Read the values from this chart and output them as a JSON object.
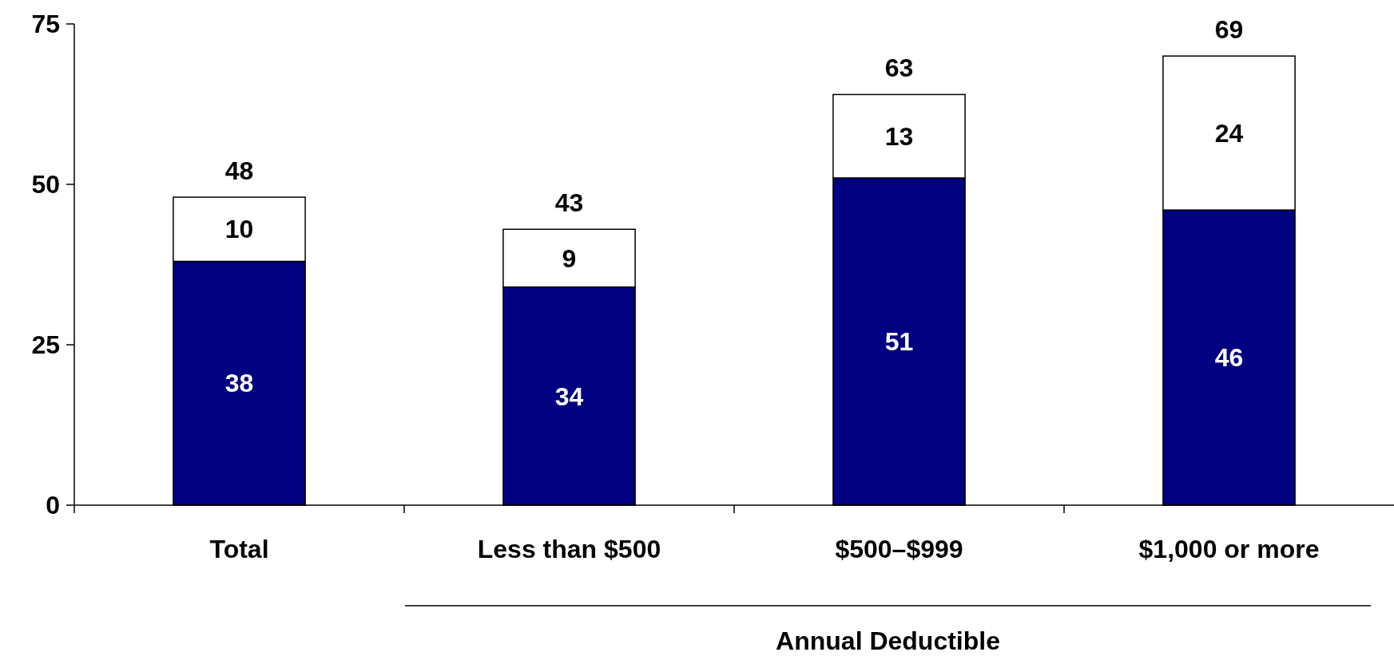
{
  "chart_data": {
    "type": "bar",
    "stacked": true,
    "categories": [
      "Total",
      "Less than $500",
      "$500–$999",
      "$1,000 or more"
    ],
    "series": [
      {
        "color": "#000080",
        "values": [
          38,
          34,
          51,
          46
        ]
      },
      {
        "color": "#ffffff",
        "values": [
          10,
          9,
          13,
          24
        ]
      }
    ],
    "totals": [
      "48",
      "43",
      "63",
      "69"
    ],
    "data_labels": true,
    "ylim": [
      0,
      75
    ],
    "yticks": [
      0,
      25,
      50,
      75
    ],
    "grid": false,
    "annotations": [
      "Annual Deductible"
    ]
  }
}
